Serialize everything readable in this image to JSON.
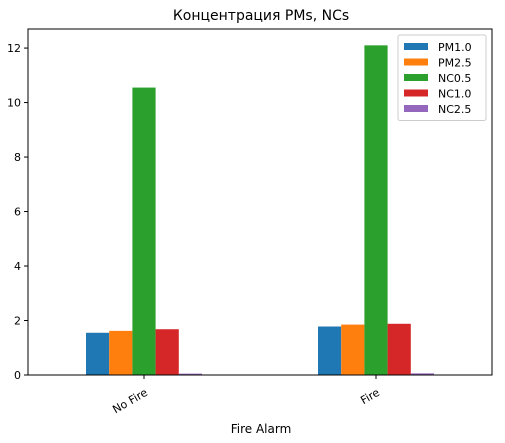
{
  "chart_data": {
    "type": "bar",
    "title": "Концентрация PMs, NCs",
    "xlabel": "Fire Alarm",
    "ylabel": "",
    "categories": [
      "No Fire",
      "Fire"
    ],
    "ylim": [
      0,
      12.7
    ],
    "yticks": [
      0,
      2,
      4,
      6,
      8,
      10,
      12
    ],
    "ytick_labels": [
      "0",
      "2",
      "4",
      "6",
      "8",
      "10",
      "12"
    ],
    "grid": false,
    "legend_position": "top-right",
    "series": [
      {
        "name": "PM1.0",
        "color": "#1f77b4",
        "values": [
          1.55,
          1.78
        ]
      },
      {
        "name": "PM2.5",
        "color": "#ff7f0e",
        "values": [
          1.62,
          1.85
        ]
      },
      {
        "name": "NC0.5",
        "color": "#2ca02c",
        "values": [
          10.55,
          12.1
        ]
      },
      {
        "name": "NC1.0",
        "color": "#d62728",
        "values": [
          1.68,
          1.88
        ]
      },
      {
        "name": "NC2.5",
        "color": "#9467bd",
        "values": [
          0.05,
          0.06
        ]
      }
    ]
  }
}
